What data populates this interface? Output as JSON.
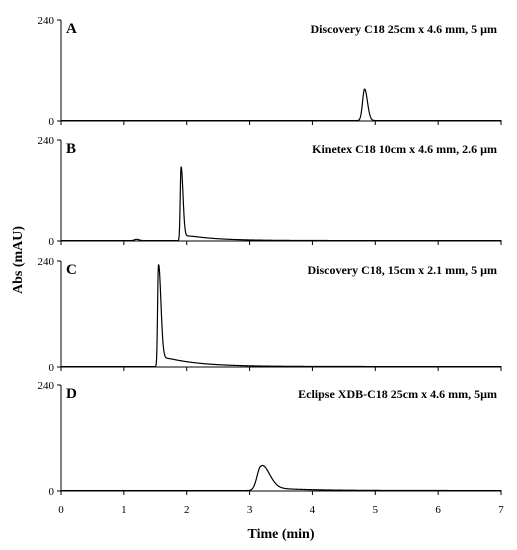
{
  "chart_data": {
    "type": "line",
    "xlabel": "Time (min)",
    "ylabel": "Abs (mAU)",
    "xlim": [
      0,
      7
    ],
    "x_ticks": [
      "0",
      "1",
      "2",
      "3",
      "4",
      "5",
      "6",
      "7"
    ],
    "ylim": [
      0,
      240
    ],
    "y_ticks": [
      "0",
      "240"
    ],
    "grid": false,
    "panels": [
      {
        "letter": "A",
        "title": "Discovery C18 25cm x 4.6 mm, 5 µm",
        "baseline": 1,
        "peaks": [
          {
            "rt": 4.83,
            "height": 75,
            "sigma_left": 0.032,
            "sigma_right": 0.045,
            "tail": 0.0
          }
        ]
      },
      {
        "letter": "B",
        "title": "Kinetex C18 10cm x 4.6 mm, 2.6 µm",
        "baseline": 1,
        "peaks": [
          {
            "rt": 1.2,
            "height": 3,
            "sigma_left": 0.03,
            "sigma_right": 0.04,
            "tail": 0.0
          },
          {
            "rt": 1.91,
            "height": 175,
            "sigma_left": 0.013,
            "sigma_right": 0.03,
            "tail": 0.22
          }
        ]
      },
      {
        "letter": "C",
        "title": "Discovery C18, 15cm x 2.1 mm, 5 µm",
        "baseline": 1,
        "peaks": [
          {
            "rt": 1.55,
            "height": 230,
            "sigma_left": 0.013,
            "sigma_right": 0.038,
            "tail": 0.28
          }
        ]
      },
      {
        "letter": "D",
        "title": "Eclipse XDB-C18 25cm x 4.6 mm, 5µm",
        "baseline": 1,
        "peaks": [
          {
            "rt": 3.18,
            "height": 55,
            "sigma_left": 0.06,
            "sigma_right": 0.13,
            "tail": 0.35
          }
        ]
      }
    ]
  }
}
